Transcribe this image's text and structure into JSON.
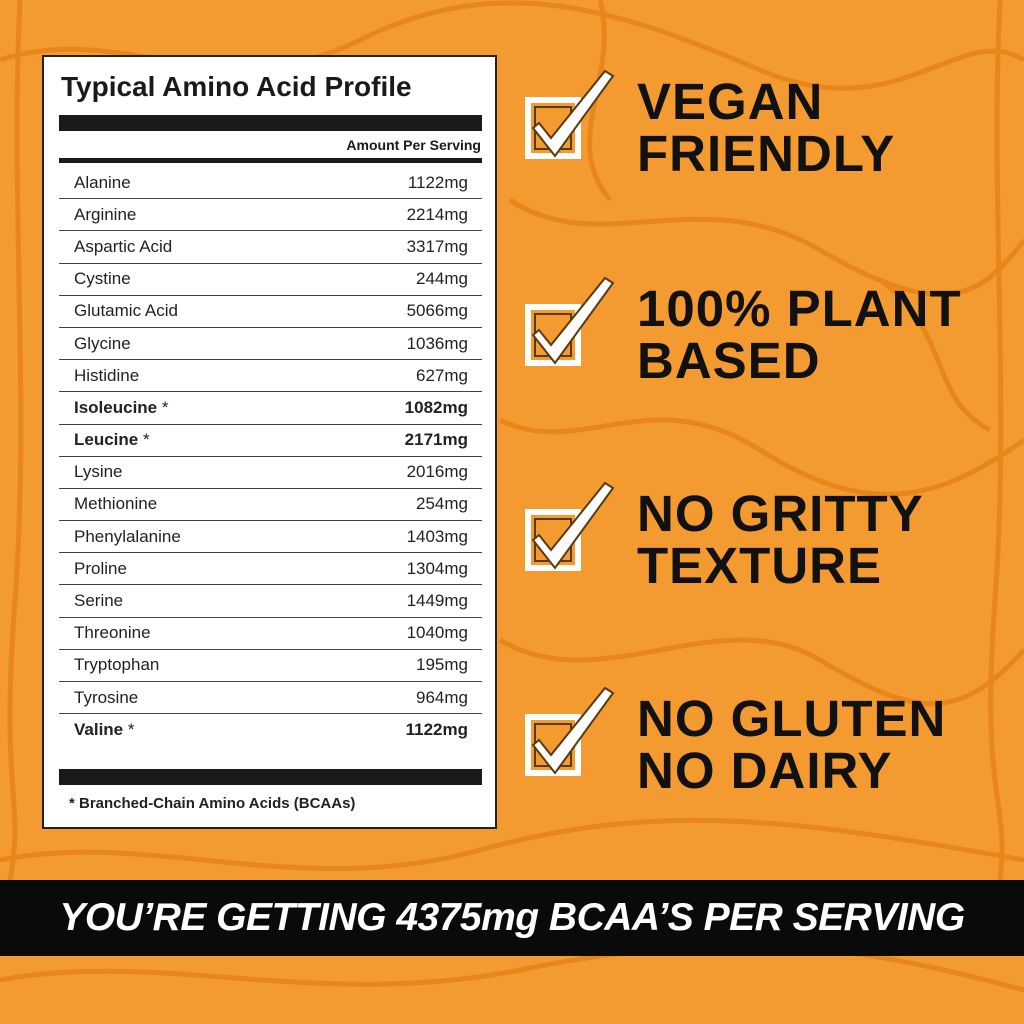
{
  "panel": {
    "title": "Typical Amino Acid Profile",
    "column_header": "Amount Per Serving",
    "rows": [
      {
        "name": "Alanine",
        "amount": "1122mg",
        "bold": false
      },
      {
        "name": "Arginine",
        "amount": "2214mg",
        "bold": false
      },
      {
        "name": "Aspartic Acid",
        "amount": "3317mg",
        "bold": false
      },
      {
        "name": "Cystine",
        "amount": "244mg",
        "bold": false
      },
      {
        "name": "Glutamic Acid",
        "amount": "5066mg",
        "bold": false
      },
      {
        "name": "Glycine",
        "amount": "1036mg",
        "bold": false
      },
      {
        "name": "Histidine",
        "amount": "627mg",
        "bold": false
      },
      {
        "name": "Isoleucine",
        "marker": "*",
        "amount": "1082mg",
        "bold": true
      },
      {
        "name": "Leucine",
        "marker": "*",
        "amount": "2171mg",
        "bold": true
      },
      {
        "name": "Lysine",
        "amount": "2016mg",
        "bold": false
      },
      {
        "name": "Methionine",
        "amount": "254mg",
        "bold": false
      },
      {
        "name": "Phenylalanine",
        "amount": "1403mg",
        "bold": false
      },
      {
        "name": "Proline",
        "amount": "1304mg",
        "bold": false
      },
      {
        "name": "Serine",
        "amount": "1449mg",
        "bold": false
      },
      {
        "name": "Threonine",
        "amount": "1040mg",
        "bold": false
      },
      {
        "name": "Tryptophan",
        "amount": "195mg",
        "bold": false
      },
      {
        "name": "Tyrosine",
        "amount": "964mg",
        "bold": false
      },
      {
        "name": "Valine",
        "marker": "*",
        "amount": "1122mg",
        "bold": true
      }
    ],
    "footnote": "* Branched-Chain Amino Acids (BCAAs)"
  },
  "features": [
    {
      "line1": "VEGAN",
      "line2": "FRIENDLY"
    },
    {
      "line1": "100% PLANT",
      "line2": "BASED"
    },
    {
      "line1": "NO GRITTY",
      "line2": "TEXTURE"
    },
    {
      "line1": "NO GLUTEN",
      "line2": "NO DAIRY"
    }
  ],
  "banner": "YOU’RE GETTING 4375mg BCAA’S PER SERVING"
}
